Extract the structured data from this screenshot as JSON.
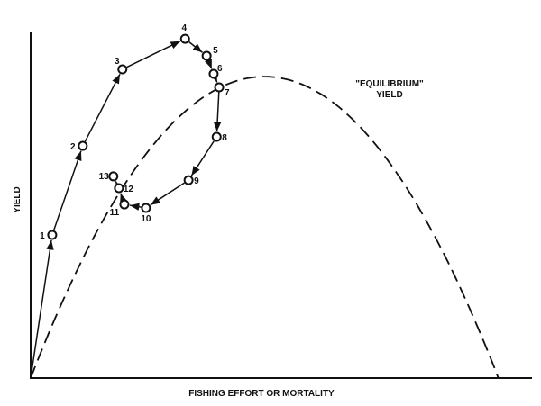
{
  "chart_data": {
    "type": "line",
    "xlabel": "FISHING EFFORT OR MORTALITY",
    "ylabel": "YIELD",
    "grid": false,
    "curve_label": [
      "\"EQUILIBRIUM\"",
      "YIELD"
    ],
    "equilibrium_curve": {
      "style": "dashed",
      "shape": "parabola",
      "x_zero": [
        0,
        93.3
      ],
      "x_peak": 47.8,
      "y_peak": 87.0
    },
    "trajectory": {
      "style": "solid with arrows",
      "start": {
        "x": 0,
        "y": 0
      },
      "points": [
        {
          "label": "1",
          "x": 4.3,
          "y": 41.3
        },
        {
          "label": "2",
          "x": 10.4,
          "y": 67.0
        },
        {
          "label": "3",
          "x": 18.3,
          "y": 89.1
        },
        {
          "label": "4",
          "x": 30.8,
          "y": 97.9
        },
        {
          "label": "5",
          "x": 35.1,
          "y": 93.0
        },
        {
          "label": "6",
          "x": 36.5,
          "y": 87.8
        },
        {
          "label": "7",
          "x": 37.6,
          "y": 83.9
        },
        {
          "label": "8",
          "x": 37.1,
          "y": 69.6
        },
        {
          "label": "9",
          "x": 31.5,
          "y": 57.1
        },
        {
          "label": "10",
          "x": 23.0,
          "y": 49.1
        },
        {
          "label": "11",
          "x": 18.7,
          "y": 50.1
        },
        {
          "label": "12",
          "x": 17.6,
          "y": 54.8
        },
        {
          "label": "13",
          "x": 16.5,
          "y": 58.2
        }
      ]
    },
    "color": "#111111"
  }
}
